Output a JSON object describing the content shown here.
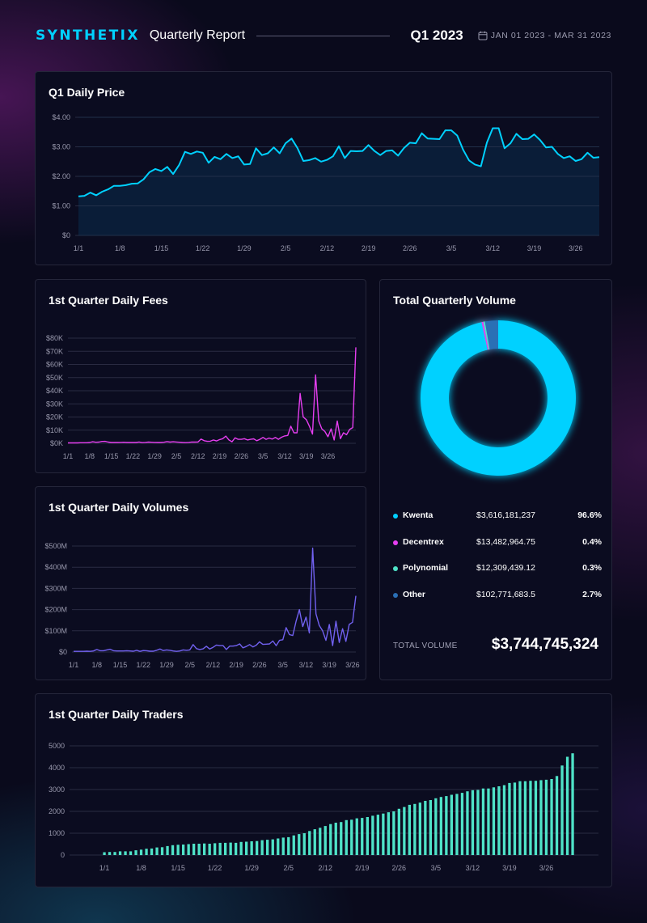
{
  "header": {
    "brand": "SYNTHETIX",
    "report_title": "Quarterly Report",
    "quarter": "Q1 2023",
    "date_icon": "calendar-icon",
    "date_range": "JAN 01 2023 - MAR 31 2023"
  },
  "colors": {
    "price": "#00d1ff",
    "fees": "#e63ef0",
    "volumes": "#7161f0",
    "traders": "#4fe3c8",
    "kwenta": "#00d1ff",
    "decentrex": "#e63ef0",
    "polynomial": "#4fe3c8",
    "other": "#2a6fb5"
  },
  "volume_card": {
    "title": "Total Quarterly Volume",
    "legend": [
      {
        "name": "Kwenta",
        "amount": "$3,616,181,237",
        "pct": "96.6%"
      },
      {
        "name": "Decentrex",
        "amount": "$13,482,964.75",
        "pct": "0.4%"
      },
      {
        "name": "Polynomial",
        "amount": "$12,309,439.12",
        "pct": "0.3%"
      },
      {
        "name": "Other",
        "amount": "$102,771,683.5",
        "pct": "2.7%"
      }
    ],
    "total_label": "TOTAL VOLUME",
    "total_value": "$3,744,745,324"
  },
  "chart_data": [
    {
      "id": "price",
      "type": "area",
      "title": "Q1 Daily Price",
      "xlabel": "",
      "ylabel": "",
      "ylim": [
        0,
        4
      ],
      "yticks": [
        0,
        1,
        2,
        3,
        4
      ],
      "ytick_labels": [
        "$0",
        "$1.00",
        "$2.00",
        "$3.00",
        "$4.00"
      ],
      "xtick_labels": [
        "1/1",
        "1/8",
        "1/15",
        "1/22",
        "1/29",
        "2/5",
        "2/12",
        "2/19",
        "2/26",
        "3/5",
        "3/12",
        "3/19",
        "3/26"
      ],
      "xtick_index": [
        0,
        7,
        14,
        21,
        28,
        35,
        42,
        49,
        56,
        63,
        70,
        77,
        84
      ],
      "grid": true,
      "values": [
        1.32,
        1.34,
        1.45,
        1.36,
        1.48,
        1.56,
        1.68,
        1.68,
        1.7,
        1.75,
        1.76,
        1.9,
        2.14,
        2.25,
        2.18,
        2.32,
        2.08,
        2.38,
        2.83,
        2.76,
        2.84,
        2.8,
        2.46,
        2.66,
        2.58,
        2.76,
        2.62,
        2.68,
        2.4,
        2.42,
        2.95,
        2.72,
        2.78,
        2.98,
        2.78,
        3.12,
        3.28,
        2.96,
        2.52,
        2.55,
        2.62,
        2.5,
        2.56,
        2.68,
        3.02,
        2.62,
        2.86,
        2.85,
        2.86,
        3.06,
        2.86,
        2.72,
        2.86,
        2.88,
        2.7,
        2.96,
        3.14,
        3.12,
        3.46,
        3.28,
        3.27,
        3.26,
        3.56,
        3.56,
        3.38,
        2.9,
        2.54,
        2.4,
        2.34,
        3.14,
        3.63,
        3.63,
        2.95,
        3.12,
        3.44,
        3.26,
        3.27,
        3.42,
        3.23,
        2.98,
        3.0,
        2.76,
        2.62,
        2.68,
        2.52,
        2.58,
        2.8,
        2.63,
        2.65
      ]
    },
    {
      "id": "fees",
      "type": "line",
      "title": "1st Quarter Daily Fees",
      "xlabel": "",
      "ylabel": "",
      "ylim": [
        0,
        80000
      ],
      "yticks": [
        0,
        10000,
        20000,
        30000,
        40000,
        50000,
        60000,
        70000,
        80000
      ],
      "ytick_labels": [
        "$0K",
        "$10K",
        "$20K",
        "$30K",
        "$40K",
        "$50K",
        "$60K",
        "$70K",
        "$80K"
      ],
      "xtick_labels": [
        "1/1",
        "1/8",
        "1/15",
        "1/22",
        "1/29",
        "2/5",
        "2/12",
        "2/19",
        "2/26",
        "3/5",
        "3/12",
        "3/19",
        "3/26"
      ],
      "xtick_index": [
        0,
        7,
        14,
        21,
        28,
        35,
        42,
        49,
        56,
        63,
        70,
        77,
        84
      ],
      "grid": true,
      "values": [
        300,
        300,
        300,
        300,
        400,
        400,
        400,
        600,
        1200,
        800,
        900,
        1400,
        1500,
        900,
        600,
        600,
        600,
        700,
        800,
        600,
        700,
        600,
        600,
        1000,
        500,
        700,
        900,
        800,
        700,
        600,
        600,
        800,
        1300,
        900,
        1200,
        1000,
        800,
        600,
        500,
        700,
        1000,
        900,
        1000,
        3200,
        2000,
        1500,
        1600,
        2500,
        1800,
        2800,
        3500,
        5500,
        2500,
        1200,
        4200,
        3000,
        3000,
        3500,
        2500,
        3000,
        3400,
        2000,
        3000,
        4500,
        3000,
        4000,
        3200,
        4500,
        3000,
        4600,
        5600,
        6000,
        13000,
        8000,
        8000,
        38000,
        20000,
        18000,
        13000,
        7000,
        52000,
        17000,
        11000,
        9000,
        5000,
        11000,
        2500,
        17000,
        3500,
        8000,
        6500,
        10500,
        12000,
        73000
      ]
    },
    {
      "id": "volumes",
      "type": "line",
      "title": "1st Quarter Daily Volumes",
      "xlabel": "",
      "ylabel": "",
      "ylim": [
        0,
        500000000
      ],
      "yticks": [
        0,
        100000000,
        200000000,
        300000000,
        400000000,
        500000000
      ],
      "ytick_labels": [
        "$0",
        "$100M",
        "$200M",
        "$300M",
        "$400M",
        "$500M"
      ],
      "xtick_labels": [
        "1/1",
        "1/8",
        "1/15",
        "1/22",
        "1/29",
        "2/5",
        "2/12",
        "2/19",
        "2/26",
        "3/5",
        "3/12",
        "3/19",
        "3/26"
      ],
      "xtick_index": [
        0,
        7,
        14,
        21,
        28,
        35,
        42,
        49,
        56,
        63,
        70,
        77,
        84
      ],
      "grid": true,
      "values": [
        3000000,
        3000000,
        3000000,
        3000000,
        4000000,
        3000000,
        5000000,
        12000000,
        6000000,
        6000000,
        10000000,
        13000000,
        6000000,
        5000000,
        5000000,
        5000000,
        6000000,
        5000000,
        4000000,
        8000000,
        3000000,
        7000000,
        6000000,
        4000000,
        4000000,
        8000000,
        14000000,
        7000000,
        10000000,
        8000000,
        5000000,
        3000000,
        5000000,
        10000000,
        8000000,
        10000000,
        35000000,
        16000000,
        12000000,
        15000000,
        27000000,
        14000000,
        22000000,
        33000000,
        30000000,
        30000000,
        12000000,
        28000000,
        28000000,
        30000000,
        38000000,
        20000000,
        26000000,
        35000000,
        24000000,
        32000000,
        48000000,
        36000000,
        37000000,
        38000000,
        52000000,
        30000000,
        55000000,
        58000000,
        115000000,
        82000000,
        78000000,
        145000000,
        200000000,
        120000000,
        165000000,
        90000000,
        490000000,
        180000000,
        125000000,
        100000000,
        55000000,
        130000000,
        30000000,
        145000000,
        45000000,
        110000000,
        50000000,
        130000000,
        140000000,
        265000000
      ]
    },
    {
      "id": "traders",
      "type": "bar",
      "title": "1st Quarter Daily Traders",
      "xlabel": "",
      "ylabel": "",
      "ylim": [
        0,
        5000
      ],
      "yticks": [
        0,
        1000,
        2000,
        3000,
        4000,
        5000
      ],
      "ytick_labels": [
        "0",
        "1000",
        "2000",
        "3000",
        "4000",
        "5000"
      ],
      "xtick_labels": [
        "1/1",
        "1/8",
        "1/15",
        "1/22",
        "1/29",
        "2/5",
        "2/12",
        "2/19",
        "2/26",
        "3/5",
        "3/12",
        "3/19",
        "3/26"
      ],
      "xtick_index": [
        0,
        7,
        14,
        21,
        28,
        35,
        42,
        49,
        56,
        63,
        70,
        77,
        84
      ],
      "grid": true,
      "values": [
        130,
        140,
        140,
        170,
        170,
        170,
        220,
        250,
        290,
        300,
        350,
        360,
        410,
        450,
        470,
        480,
        500,
        520,
        520,
        530,
        520,
        540,
        560,
        560,
        570,
        560,
        600,
        610,
        630,
        640,
        680,
        700,
        720,
        760,
        800,
        820,
        900,
        960,
        1000,
        1100,
        1180,
        1250,
        1330,
        1420,
        1480,
        1510,
        1600,
        1620,
        1680,
        1700,
        1740,
        1800,
        1850,
        1900,
        1960,
        2000,
        2120,
        2200,
        2300,
        2340,
        2400,
        2480,
        2520,
        2600,
        2660,
        2700,
        2760,
        2800,
        2850,
        2920,
        2970,
        2980,
        3050,
        3050,
        3100,
        3150,
        3200,
        3300,
        3320,
        3380,
        3380,
        3400,
        3400,
        3430,
        3450,
        3480,
        3620,
        4100,
        4500,
        4660
      ]
    },
    {
      "id": "quarterly_volume",
      "type": "pie",
      "title": "Total Quarterly Volume",
      "categories": [
        "Kwenta",
        "Decentrex",
        "Polynomial",
        "Other"
      ],
      "values": [
        3616181237,
        13482964.75,
        12309439.12,
        102771683.5
      ],
      "percent": [
        96.6,
        0.4,
        0.3,
        2.7
      ],
      "donut": true
    }
  ]
}
